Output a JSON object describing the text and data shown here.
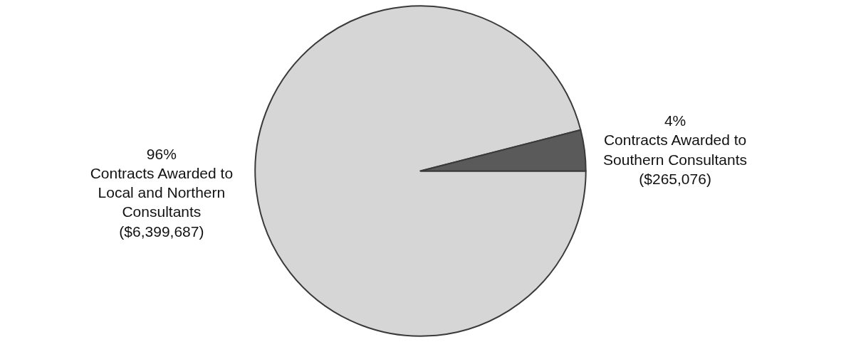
{
  "chart_data": {
    "type": "pie",
    "categories": [
      "Contracts Awarded to Local and Northern Consultants ($6,399,687)",
      "Contracts Awarded to Southern Consultants ($265,076)"
    ],
    "values": [
      96,
      4
    ],
    "value_labels": [
      "96%",
      "4%"
    ],
    "colors": [
      "#d6d6d6",
      "#5a5a5a"
    ],
    "legend": false
  }
}
